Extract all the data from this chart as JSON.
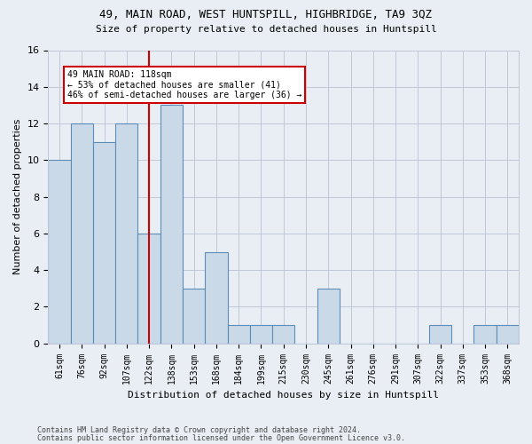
{
  "title1": "49, MAIN ROAD, WEST HUNTSPILL, HIGHBRIDGE, TA9 3QZ",
  "title2": "Size of property relative to detached houses in Huntspill",
  "xlabel": "Distribution of detached houses by size in Huntspill",
  "ylabel": "Number of detached properties",
  "categories": [
    "61sqm",
    "76sqm",
    "92sqm",
    "107sqm",
    "122sqm",
    "138sqm",
    "153sqm",
    "168sqm",
    "184sqm",
    "199sqm",
    "215sqm",
    "230sqm",
    "245sqm",
    "261sqm",
    "276sqm",
    "291sqm",
    "307sqm",
    "322sqm",
    "337sqm",
    "353sqm",
    "368sqm"
  ],
  "values": [
    10,
    12,
    11,
    12,
    6,
    13,
    3,
    5,
    1,
    1,
    1,
    0,
    3,
    0,
    0,
    0,
    0,
    1,
    0,
    1,
    1
  ],
  "bar_color": "#c9d9e8",
  "bar_edge_color": "#5b8db8",
  "annotation_line1": "49 MAIN ROAD: 118sqm",
  "annotation_line2": "← 53% of detached houses are smaller (41)",
  "annotation_line3": "46% of semi-detached houses are larger (36) →",
  "annotation_box_color": "#ffffff",
  "annotation_box_edge_color": "#cc0000",
  "red_line_x": 4.5,
  "ylim": [
    0,
    16
  ],
  "footnote1": "Contains HM Land Registry data © Crown copyright and database right 2024.",
  "footnote2": "Contains public sector information licensed under the Open Government Licence v3.0.",
  "grid_color": "#c0c8d8",
  "background_color": "#e8eef4"
}
